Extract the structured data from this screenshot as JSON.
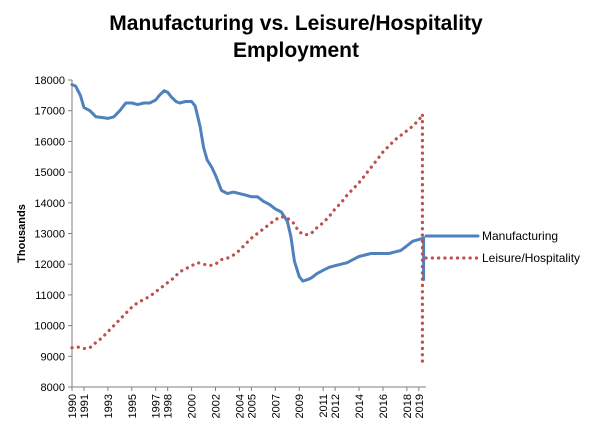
{
  "chart_data": {
    "type": "line",
    "title_line1": "Manufacturing vs. Leisure/Hospitality",
    "title_line2": "Employment",
    "xlabel": "",
    "ylabel": "Thousands",
    "ylim": [
      8000,
      18000
    ],
    "xlim": [
      1990,
      2019.6
    ],
    "y_ticks": [
      8000,
      9000,
      10000,
      11000,
      12000,
      13000,
      14000,
      15000,
      16000,
      17000,
      18000
    ],
    "x_ticks": [
      1990,
      1991,
      1993,
      1995,
      1997,
      1998,
      2000,
      2002,
      2004,
      2005,
      2007,
      2009,
      2011,
      2012,
      2014,
      2016,
      2018,
      2019
    ],
    "grid": false,
    "legend": "right",
    "series": [
      {
        "name": "Manufacturing",
        "color": "#4f81bd",
        "style": "solid",
        "x": [
          1990.0,
          1990.3,
          1990.7,
          1991.0,
          1991.5,
          1992.0,
          1992.5,
          1993.0,
          1993.5,
          1994.0,
          1994.5,
          1995.0,
          1995.5,
          1996.0,
          1996.5,
          1997.0,
          1997.3,
          1997.7,
          1998.0,
          1998.3,
          1998.7,
          1999.0,
          1999.5,
          2000.0,
          2000.3,
          2000.7,
          2001.0,
          2001.3,
          2001.7,
          2002.0,
          2002.5,
          2003.0,
          2003.5,
          2004.0,
          2004.5,
          2005.0,
          2005.5,
          2006.0,
          2006.5,
          2007.0,
          2007.5,
          2008.0,
          2008.3,
          2008.6,
          2009.0,
          2009.3,
          2009.7,
          2010.0,
          2010.5,
          2011.0,
          2011.5,
          2012.0,
          2012.5,
          2013.0,
          2013.5,
          2014.0,
          2014.5,
          2015.0,
          2015.5,
          2016.0,
          2016.5,
          2017.0,
          2017.5,
          2018.0,
          2018.5,
          2019.0,
          2019.4
        ],
        "values": [
          17850,
          17800,
          17500,
          17100,
          17000,
          16800,
          16780,
          16750,
          16800,
          17000,
          17250,
          17250,
          17200,
          17250,
          17250,
          17350,
          17500,
          17650,
          17600,
          17450,
          17300,
          17250,
          17300,
          17300,
          17150,
          16500,
          15800,
          15400,
          15150,
          14900,
          14400,
          14300,
          14350,
          14300,
          14250,
          14200,
          14200,
          14050,
          13950,
          13800,
          13700,
          13400,
          12900,
          12100,
          11600,
          11450,
          11500,
          11550,
          11700,
          11800,
          11900,
          11950,
          12000,
          12050,
          12150,
          12250,
          12300,
          12350,
          12350,
          12350,
          12350,
          12400,
          12450,
          12600,
          12750,
          12800,
          12850
        ]
      },
      {
        "name": "Leisure/Hospitality",
        "color": "#c0504d",
        "style": "dotted",
        "x": [
          1990.0,
          1990.5,
          1991.0,
          1991.5,
          1992.0,
          1992.5,
          1993.0,
          1993.5,
          1994.0,
          1994.5,
          1995.0,
          1995.5,
          1996.0,
          1996.5,
          1997.0,
          1997.5,
          1998.0,
          1998.5,
          1999.0,
          1999.5,
          2000.0,
          2000.5,
          2001.0,
          2001.5,
          2002.0,
          2002.5,
          2003.0,
          2003.5,
          2004.0,
          2004.5,
          2005.0,
          2005.5,
          2006.0,
          2006.5,
          2007.0,
          2007.5,
          2008.0,
          2008.5,
          2009.0,
          2009.5,
          2010.0,
          2010.5,
          2011.0,
          2011.5,
          2012.0,
          2012.5,
          2013.0,
          2013.5,
          2014.0,
          2014.5,
          2015.0,
          2015.5,
          2016.0,
          2016.5,
          2017.0,
          2017.5,
          2018.0,
          2018.5,
          2019.0,
          2019.3
        ],
        "values": [
          9280,
          9300,
          9250,
          9280,
          9450,
          9600,
          9800,
          10000,
          10200,
          10400,
          10600,
          10750,
          10850,
          10950,
          11100,
          11250,
          11400,
          11550,
          11750,
          11850,
          11950,
          12050,
          12000,
          11950,
          12000,
          12150,
          12200,
          12300,
          12450,
          12650,
          12850,
          13000,
          13150,
          13300,
          13450,
          13550,
          13500,
          13350,
          13050,
          12950,
          13000,
          13200,
          13350,
          13550,
          13800,
          14000,
          14250,
          14450,
          14650,
          14900,
          15150,
          15400,
          15650,
          15850,
          16050,
          16200,
          16350,
          16500,
          16700,
          16850
        ]
      }
    ]
  }
}
